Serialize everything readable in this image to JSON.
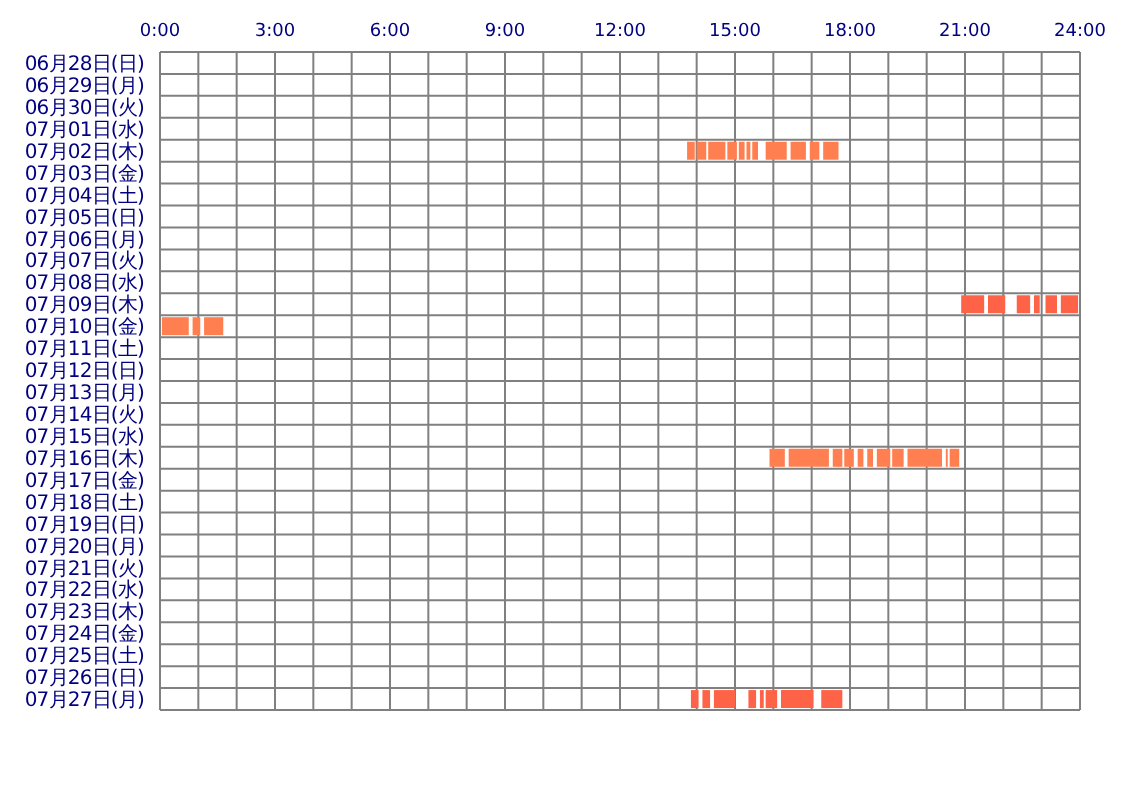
{
  "chart_data": {
    "type": "bar",
    "orientation": "horizontal",
    "grid": true,
    "categories": [
      "06月28日(日)",
      "06月29日(月)",
      "06月30日(火)",
      "07月01日(水)",
      "07月02日(木)",
      "07月03日(金)",
      "07月04日(土)",
      "07月05日(日)",
      "07月06日(月)",
      "07月07日(火)",
      "07月08日(水)",
      "07月09日(木)",
      "07月10日(金)",
      "07月11日(土)",
      "07月12日(日)",
      "07月13日(月)",
      "07月14日(火)",
      "07月15日(水)",
      "07月16日(木)",
      "07月17日(金)",
      "07月18日(土)",
      "07月19日(日)",
      "07月20日(月)",
      "07月21日(火)",
      "07月22日(水)",
      "07月23日(木)",
      "07月24日(金)",
      "07月25日(土)",
      "07月26日(日)",
      "07月27日(月)"
    ],
    "xlim": [
      0,
      24
    ],
    "xticks": [
      {
        "value": 0,
        "label": "0:00"
      },
      {
        "value": 1,
        "label": null
      },
      {
        "value": 2,
        "label": null
      },
      {
        "value": 3,
        "label": "3:00"
      },
      {
        "value": 4,
        "label": null
      },
      {
        "value": 5,
        "label": null
      },
      {
        "value": 6,
        "label": "6:00"
      },
      {
        "value": 7,
        "label": null
      },
      {
        "value": 8,
        "label": null
      },
      {
        "value": 9,
        "label": "9:00"
      },
      {
        "value": 10,
        "label": null
      },
      {
        "value": 11,
        "label": null
      },
      {
        "value": 12,
        "label": "12:00"
      },
      {
        "value": 13,
        "label": null
      },
      {
        "value": 14,
        "label": null
      },
      {
        "value": 15,
        "label": "15:00"
      },
      {
        "value": 16,
        "label": null
      },
      {
        "value": 17,
        "label": null
      },
      {
        "value": 18,
        "label": "18:00"
      },
      {
        "value": 19,
        "label": null
      },
      {
        "value": 20,
        "label": null
      },
      {
        "value": 21,
        "label": "21:00"
      },
      {
        "value": 22,
        "label": null
      },
      {
        "value": 23,
        "label": null
      },
      {
        "value": 24,
        "label": "24:00"
      }
    ],
    "series": [
      {
        "colors": [
          null,
          null,
          null,
          null,
          "#ff7f50",
          null,
          null,
          null,
          null,
          null,
          null,
          "#ff6347",
          "#ff7f50",
          null,
          null,
          null,
          null,
          null,
          "#ff7f50",
          null,
          null,
          null,
          null,
          null,
          null,
          null,
          null,
          null,
          null,
          "#ff6347"
        ],
        "base": [
          null,
          null,
          null,
          null,
          13.75,
          null,
          null,
          null,
          null,
          null,
          null,
          20.9,
          0.05,
          null,
          null,
          null,
          null,
          null,
          15.9,
          null,
          null,
          null,
          null,
          null,
          null,
          null,
          null,
          null,
          null,
          13.85
        ],
        "values": [
          null,
          null,
          null,
          null,
          0.2,
          null,
          null,
          null,
          null,
          null,
          null,
          0.6,
          0.7,
          null,
          null,
          null,
          null,
          null,
          0.4,
          null,
          null,
          null,
          null,
          null,
          null,
          null,
          null,
          null,
          null,
          0.2
        ]
      },
      {
        "colors": [
          null,
          null,
          null,
          null,
          "#ff7f50",
          null,
          null,
          null,
          null,
          null,
          null,
          "#ff6347",
          "#ff7f50",
          null,
          null,
          null,
          null,
          null,
          "#ff7f50",
          null,
          null,
          null,
          null,
          null,
          null,
          null,
          null,
          null,
          null,
          "#ff6347"
        ],
        "base": [
          null,
          null,
          null,
          null,
          14.0,
          null,
          null,
          null,
          null,
          null,
          null,
          21.6,
          0.85,
          null,
          null,
          null,
          null,
          null,
          16.4,
          null,
          null,
          null,
          null,
          null,
          null,
          null,
          null,
          null,
          null,
          14.15
        ],
        "values": [
          null,
          null,
          null,
          null,
          0.25,
          null,
          null,
          null,
          null,
          null,
          null,
          0.45,
          0.2,
          null,
          null,
          null,
          null,
          null,
          1.05,
          null,
          null,
          null,
          null,
          null,
          null,
          null,
          null,
          null,
          null,
          0.2
        ]
      },
      {
        "colors": [
          null,
          null,
          null,
          null,
          "#ff7f50",
          null,
          null,
          null,
          null,
          null,
          null,
          "#ff6347",
          "#ff7f50",
          null,
          null,
          null,
          null,
          null,
          "#ff7f50",
          null,
          null,
          null,
          null,
          null,
          null,
          null,
          null,
          null,
          null,
          "#ff6347"
        ],
        "base": [
          null,
          null,
          null,
          null,
          14.3,
          null,
          null,
          null,
          null,
          null,
          null,
          22.35,
          1.15,
          null,
          null,
          null,
          null,
          null,
          17.55,
          null,
          null,
          null,
          null,
          null,
          null,
          null,
          null,
          null,
          null,
          14.45
        ],
        "values": [
          null,
          null,
          null,
          null,
          0.45,
          null,
          null,
          null,
          null,
          null,
          null,
          0.35,
          0.5,
          null,
          null,
          null,
          null,
          null,
          0.25,
          null,
          null,
          null,
          null,
          null,
          null,
          null,
          null,
          null,
          null,
          0.55
        ]
      },
      {
        "colors": [
          null,
          null,
          null,
          null,
          "#ff7f50",
          null,
          null,
          null,
          null,
          null,
          null,
          "#ff6347",
          null,
          null,
          null,
          null,
          null,
          null,
          "#ff7f50",
          null,
          null,
          null,
          null,
          null,
          null,
          null,
          null,
          null,
          null,
          "#ff6347"
        ],
        "base": [
          null,
          null,
          null,
          null,
          14.8,
          null,
          null,
          null,
          null,
          null,
          null,
          22.8,
          null,
          null,
          null,
          null,
          null,
          null,
          17.85,
          null,
          null,
          null,
          null,
          null,
          null,
          null,
          null,
          null,
          null,
          15.35
        ],
        "values": [
          null,
          null,
          null,
          null,
          0.25,
          null,
          null,
          null,
          null,
          null,
          null,
          0.15,
          null,
          null,
          null,
          null,
          null,
          null,
          0.25,
          null,
          null,
          null,
          null,
          null,
          null,
          null,
          null,
          null,
          null,
          0.2
        ]
      },
      {
        "colors": [
          null,
          null,
          null,
          null,
          "#ff7f50",
          null,
          null,
          null,
          null,
          null,
          null,
          "#ff6347",
          null,
          null,
          null,
          null,
          null,
          null,
          "#ff7f50",
          null,
          null,
          null,
          null,
          null,
          null,
          null,
          null,
          null,
          null,
          "#ff6347"
        ],
        "base": [
          null,
          null,
          null,
          null,
          15.1,
          null,
          null,
          null,
          null,
          null,
          null,
          23.1,
          null,
          null,
          null,
          null,
          null,
          null,
          18.2,
          null,
          null,
          null,
          null,
          null,
          null,
          null,
          null,
          null,
          null,
          15.65
        ],
        "values": [
          null,
          null,
          null,
          null,
          0.15,
          null,
          null,
          null,
          null,
          null,
          null,
          0.3,
          null,
          null,
          null,
          null,
          null,
          null,
          0.15,
          null,
          null,
          null,
          null,
          null,
          null,
          null,
          null,
          null,
          null,
          0.1
        ]
      },
      {
        "colors": [
          null,
          null,
          null,
          null,
          "#ff7f50",
          null,
          null,
          null,
          null,
          null,
          null,
          "#ff6347",
          null,
          null,
          null,
          null,
          null,
          null,
          "#ff7f50",
          null,
          null,
          null,
          null,
          null,
          null,
          null,
          null,
          null,
          null,
          "#ff6347"
        ],
        "base": [
          null,
          null,
          null,
          null,
          15.3,
          null,
          null,
          null,
          null,
          null,
          null,
          23.5,
          null,
          null,
          null,
          null,
          null,
          null,
          18.45,
          null,
          null,
          null,
          null,
          null,
          null,
          null,
          null,
          null,
          null,
          15.8
        ],
        "values": [
          null,
          null,
          null,
          null,
          0.1,
          null,
          null,
          null,
          null,
          null,
          null,
          0.45,
          null,
          null,
          null,
          null,
          null,
          null,
          0.15,
          null,
          null,
          null,
          null,
          null,
          null,
          null,
          null,
          null,
          null,
          0.3
        ]
      },
      {
        "colors": [
          null,
          null,
          null,
          null,
          "#ff7f50",
          null,
          null,
          null,
          null,
          null,
          null,
          null,
          null,
          null,
          null,
          null,
          null,
          null,
          "#ff7f50",
          null,
          null,
          null,
          null,
          null,
          null,
          null,
          null,
          null,
          null,
          "#ff6347"
        ],
        "base": [
          null,
          null,
          null,
          null,
          15.45,
          null,
          null,
          null,
          null,
          null,
          null,
          null,
          null,
          null,
          null,
          null,
          null,
          null,
          18.7,
          null,
          null,
          null,
          null,
          null,
          null,
          null,
          null,
          null,
          null,
          16.2
        ],
        "values": [
          null,
          null,
          null,
          null,
          0.15,
          null,
          null,
          null,
          null,
          null,
          null,
          null,
          null,
          null,
          null,
          null,
          null,
          null,
          0.35,
          null,
          null,
          null,
          null,
          null,
          null,
          null,
          null,
          null,
          null,
          0.85
        ]
      },
      {
        "colors": [
          null,
          null,
          null,
          null,
          "#ff7f50",
          null,
          null,
          null,
          null,
          null,
          null,
          null,
          null,
          null,
          null,
          null,
          null,
          null,
          "#ff7f50",
          null,
          null,
          null,
          null,
          null,
          null,
          null,
          null,
          null,
          null,
          "#ff6347"
        ],
        "base": [
          null,
          null,
          null,
          null,
          15.8,
          null,
          null,
          null,
          null,
          null,
          null,
          null,
          null,
          null,
          null,
          null,
          null,
          null,
          19.1,
          null,
          null,
          null,
          null,
          null,
          null,
          null,
          null,
          null,
          null,
          17.25
        ],
        "values": [
          null,
          null,
          null,
          null,
          0.55,
          null,
          null,
          null,
          null,
          null,
          null,
          null,
          null,
          null,
          null,
          null,
          null,
          null,
          0.3,
          null,
          null,
          null,
          null,
          null,
          null,
          null,
          null,
          null,
          null,
          0.55
        ]
      },
      {
        "color": "#ff7f50",
        "base": [
          null,
          null,
          null,
          null,
          16.45,
          null,
          null,
          null,
          null,
          null,
          null,
          null,
          null,
          null,
          null,
          null,
          null,
          null,
          19.5,
          null,
          null,
          null,
          null,
          null,
          null,
          null,
          null,
          null,
          null,
          null
        ],
        "values": [
          null,
          null,
          null,
          null,
          0.4,
          null,
          null,
          null,
          null,
          null,
          null,
          null,
          null,
          null,
          null,
          null,
          null,
          null,
          0.9,
          null,
          null,
          null,
          null,
          null,
          null,
          null,
          null,
          null,
          null,
          null
        ]
      },
      {
        "color": "#ff7f50",
        "base": [
          null,
          null,
          null,
          null,
          16.95,
          null,
          null,
          null,
          null,
          null,
          null,
          null,
          null,
          null,
          null,
          null,
          null,
          null,
          20.5,
          null,
          null,
          null,
          null,
          null,
          null,
          null,
          null,
          null,
          null,
          null
        ],
        "values": [
          null,
          null,
          null,
          null,
          0.25,
          null,
          null,
          null,
          null,
          null,
          null,
          null,
          null,
          null,
          null,
          null,
          null,
          null,
          0.05,
          null,
          null,
          null,
          null,
          null,
          null,
          null,
          null,
          null,
          null,
          null
        ]
      },
      {
        "color": "#ff7f50",
        "base": [
          null,
          null,
          null,
          null,
          17.3,
          null,
          null,
          null,
          null,
          null,
          null,
          null,
          null,
          null,
          null,
          null,
          null,
          null,
          20.6,
          null,
          null,
          null,
          null,
          null,
          null,
          null,
          null,
          null,
          null,
          null
        ],
        "values": [
          null,
          null,
          null,
          null,
          0.4,
          null,
          null,
          null,
          null,
          null,
          null,
          null,
          null,
          null,
          null,
          null,
          null,
          null,
          0.25,
          null,
          null,
          null,
          null,
          null,
          null,
          null,
          null,
          null,
          null,
          null
        ]
      }
    ]
  }
}
